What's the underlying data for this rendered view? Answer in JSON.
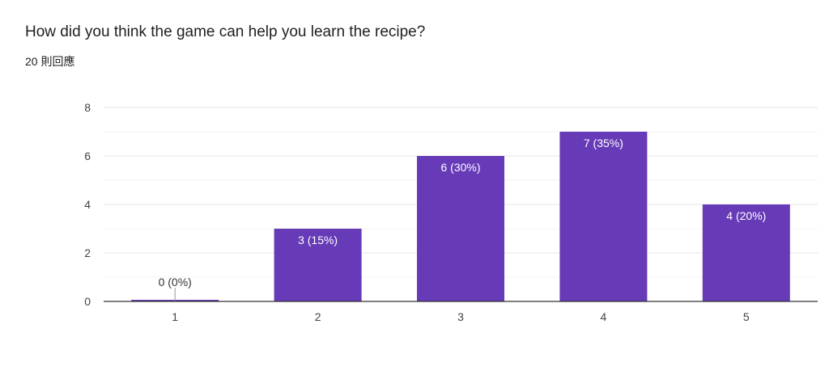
{
  "question": "How did you think the game can help you learn the recipe?",
  "responses": "20 則回應",
  "chart_data": {
    "type": "bar",
    "categories": [
      "1",
      "2",
      "3",
      "4",
      "5"
    ],
    "values": [
      0,
      3,
      6,
      7,
      4
    ],
    "data_labels": [
      "0 (0%)",
      "3 (15%)",
      "6 (30%)",
      "7 (35%)",
      "4 (20%)"
    ],
    "ylim": [
      0,
      8
    ],
    "yticks": [
      "0",
      "2",
      "4",
      "6",
      "8"
    ],
    "grid": true,
    "bar_color": "#673ab7"
  }
}
